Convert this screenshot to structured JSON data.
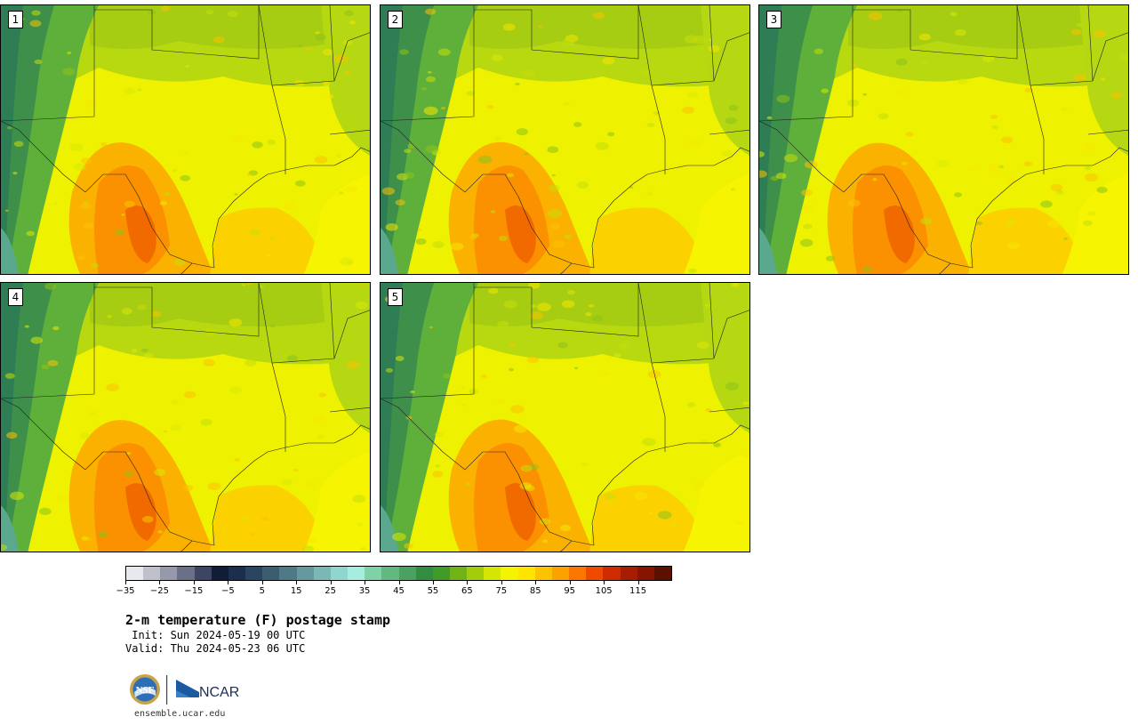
{
  "panels": [
    {
      "label": "1",
      "warmth": 0.55
    },
    {
      "label": "2",
      "warmth": 0.6
    },
    {
      "label": "3",
      "warmth": 0.5
    },
    {
      "label": "4",
      "warmth": 0.55
    },
    {
      "label": "5",
      "warmth": 0.62
    }
  ],
  "colorbar": {
    "colors": [
      "#e8e8ef",
      "#bfc0cc",
      "#9599aa",
      "#6a7088",
      "#3c4563",
      "#111d36",
      "#1b2f4c",
      "#29455f",
      "#3a5d70",
      "#4e7a87",
      "#649a9d",
      "#79b8b5",
      "#8fd6cd",
      "#a6ecdf",
      "#7fd2a6",
      "#62b980",
      "#4aa160",
      "#338d40",
      "#3f9a28",
      "#6fb316",
      "#a3cc0b",
      "#d6e604",
      "#f4f400",
      "#ffe400",
      "#fbc300",
      "#fca200",
      "#fb7700",
      "#f04a00",
      "#d02b00",
      "#a81c00",
      "#861500",
      "#5c1000"
    ],
    "tick_labels": [
      "−35",
      "−25",
      "−15",
      "−5",
      "5",
      "15",
      "25",
      "35",
      "45",
      "55",
      "65",
      "75",
      "85",
      "95",
      "105",
      "115"
    ],
    "range": [
      -35,
      125
    ]
  },
  "title": "2-m temperature (F) postage stamp",
  "init": " Init: Sun 2024-05-19 00 UTC",
  "valid": "Valid: Thu 2024-05-23 06 UTC",
  "logos": {
    "nsf": "NSF",
    "ncar": "NCAR"
  },
  "url": "ensemble.ucar.edu"
}
